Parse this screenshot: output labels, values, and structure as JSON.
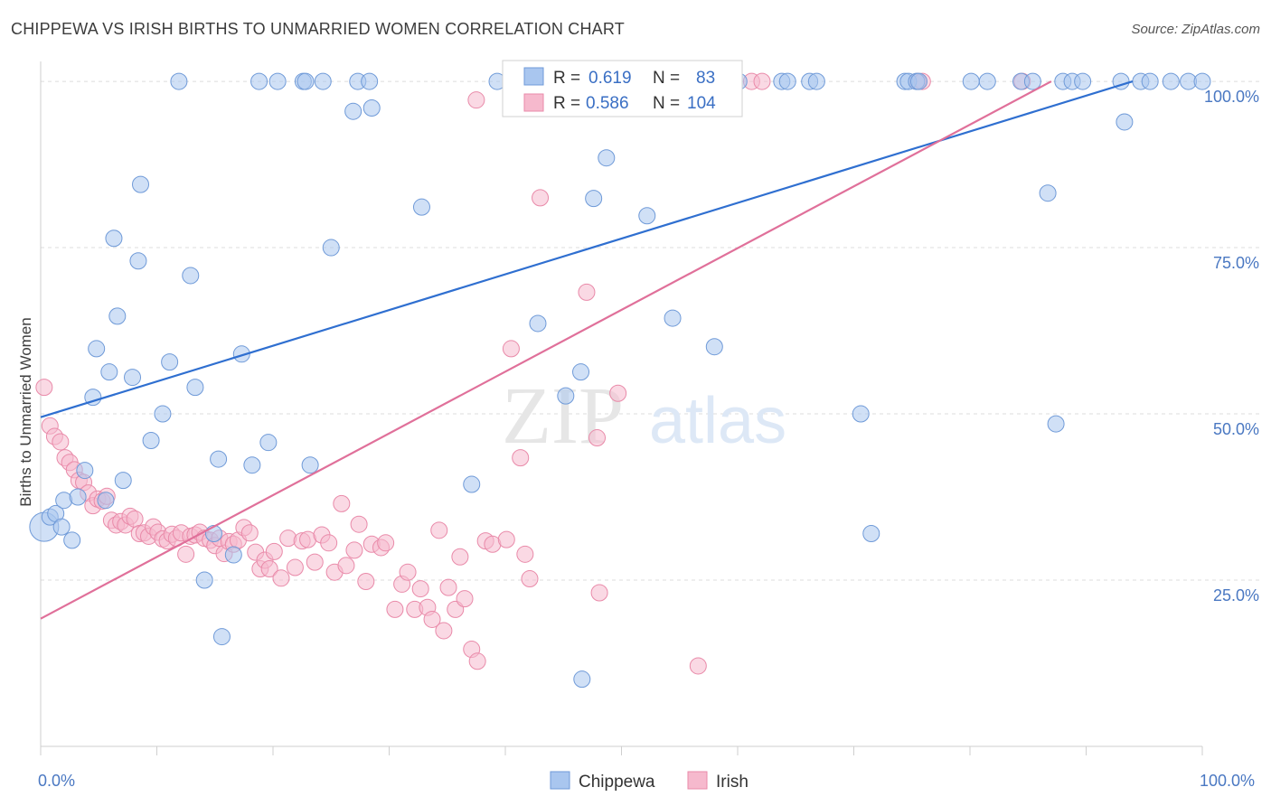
{
  "title": "CHIPPEWA VS IRISH BIRTHS TO UNMARRIED WOMEN CORRELATION CHART",
  "source": "Source: ZipAtlas.com",
  "watermark": {
    "zip": "ZIP",
    "atlas": "atlas"
  },
  "colors": {
    "chippewa_fill": "#a9c6ef",
    "chippewa_stroke": "#6f9ad8",
    "chippewa_line": "#2f6fd0",
    "irish_fill": "#f6b9cd",
    "irish_stroke": "#e98aa9",
    "irish_line": "#e0709a",
    "grid": "#dcdcdc",
    "tick_text": "#4a78c2"
  },
  "legend": {
    "r_label": "R =",
    "n_label": "N =",
    "rows": [
      {
        "series": "Chippewa",
        "r": "0.619",
        "n": "83"
      },
      {
        "series": "Irish",
        "r": "0.586",
        "n": "104"
      }
    ],
    "placement": "top-center"
  },
  "chart_data": {
    "type": "scatter",
    "title": "CHIPPEWA VS IRISH BIRTHS TO UNMARRIED WOMEN CORRELATION CHART",
    "xlabel": "",
    "ylabel": "Births to Unmarried Women",
    "xlim": [
      0,
      100
    ],
    "ylim": [
      0,
      103
    ],
    "x_tick_labels": [
      "0.0%",
      "100.0%"
    ],
    "y_ticks": [
      {
        "value": 25,
        "label": "25.0%"
      },
      {
        "value": 50,
        "label": "50.0%"
      },
      {
        "value": 75,
        "label": "75.0%"
      },
      {
        "value": 100,
        "label": "100.0%"
      }
    ],
    "grid": true,
    "series": [
      {
        "name": "Chippewa",
        "trend": {
          "x": [
            0,
            94
          ],
          "y": [
            49.5,
            100
          ]
        },
        "points": [
          [
            0.3,
            33
          ],
          [
            0.8,
            34.5
          ],
          [
            1.3,
            35
          ],
          [
            1.8,
            33
          ],
          [
            2,
            37
          ],
          [
            2.7,
            31
          ],
          [
            3.2,
            37.5
          ],
          [
            3.8,
            41.5
          ],
          [
            4.5,
            52.5
          ],
          [
            4.8,
            59.8
          ],
          [
            5.6,
            37
          ],
          [
            5.9,
            56.3
          ],
          [
            6.3,
            76.4
          ],
          [
            6.6,
            64.7
          ],
          [
            7.1,
            40
          ],
          [
            7.9,
            55.5
          ],
          [
            8.4,
            73
          ],
          [
            8.6,
            84.5
          ],
          [
            9.5,
            46
          ],
          [
            10.5,
            50
          ],
          [
            11.1,
            57.8
          ],
          [
            11.9,
            100
          ],
          [
            12.9,
            70.8
          ],
          [
            13.3,
            54
          ],
          [
            14.1,
            25
          ],
          [
            14.9,
            32
          ],
          [
            15.3,
            43.2
          ],
          [
            15.6,
            16.5
          ],
          [
            16.6,
            28.8
          ],
          [
            17.3,
            59
          ],
          [
            18.2,
            42.3
          ],
          [
            18.8,
            100
          ],
          [
            19.6,
            45.7
          ],
          [
            20.4,
            100
          ],
          [
            22.6,
            100
          ],
          [
            22.8,
            100
          ],
          [
            23.2,
            42.3
          ],
          [
            24.3,
            100
          ],
          [
            25,
            75
          ],
          [
            26.9,
            95.5
          ],
          [
            27.3,
            100
          ],
          [
            28.3,
            100
          ],
          [
            28.5,
            96
          ],
          [
            32.8,
            81.1
          ],
          [
            37.1,
            39.4
          ],
          [
            39.3,
            100
          ],
          [
            42.8,
            63.6
          ],
          [
            45.2,
            52.7
          ],
          [
            46.5,
            56.3
          ],
          [
            46.6,
            10.1
          ],
          [
            47.6,
            82.4
          ],
          [
            48.7,
            88.5
          ],
          [
            52.2,
            79.8
          ],
          [
            54.4,
            64.4
          ],
          [
            56.4,
            100
          ],
          [
            58,
            60.1
          ],
          [
            60.1,
            100
          ],
          [
            63.8,
            100
          ],
          [
            64.3,
            100
          ],
          [
            66.2,
            100
          ],
          [
            66.8,
            100
          ],
          [
            70.6,
            50
          ],
          [
            74.4,
            100
          ],
          [
            74.7,
            100
          ],
          [
            75.4,
            100
          ],
          [
            75.6,
            100
          ],
          [
            71.5,
            32
          ],
          [
            80.1,
            100
          ],
          [
            81.5,
            100
          ],
          [
            84.4,
            100
          ],
          [
            85.4,
            100
          ],
          [
            86.7,
            83.2
          ],
          [
            87.4,
            48.5
          ],
          [
            88,
            100
          ],
          [
            88.8,
            100
          ],
          [
            89.7,
            100
          ],
          [
            93,
            100
          ],
          [
            93.3,
            93.9
          ],
          [
            94.7,
            100
          ],
          [
            95.5,
            100
          ],
          [
            97.3,
            100
          ],
          [
            98.8,
            100
          ],
          [
            100,
            100
          ]
        ]
      },
      {
        "name": "Irish",
        "trend": {
          "x": [
            0,
            87
          ],
          "y": [
            19.2,
            100
          ]
        },
        "points": [
          [
            0.3,
            54
          ],
          [
            0.8,
            48.2
          ],
          [
            1.2,
            46.6
          ],
          [
            1.7,
            45.8
          ],
          [
            2.1,
            43.4
          ],
          [
            2.5,
            42.7
          ],
          [
            2.9,
            41.6
          ],
          [
            3.3,
            40
          ],
          [
            3.7,
            39.7
          ],
          [
            4.1,
            38.1
          ],
          [
            4.5,
            36.2
          ],
          [
            4.9,
            37.2
          ],
          [
            5.3,
            36.9
          ],
          [
            5.7,
            37.6
          ],
          [
            6.1,
            34
          ],
          [
            6.5,
            33.3
          ],
          [
            6.9,
            33.8
          ],
          [
            7.3,
            33.3
          ],
          [
            7.7,
            34.6
          ],
          [
            8.1,
            34.2
          ],
          [
            8.5,
            32
          ],
          [
            8.9,
            32.1
          ],
          [
            9.3,
            31.6
          ],
          [
            9.7,
            33
          ],
          [
            10.1,
            32.2
          ],
          [
            10.5,
            31.2
          ],
          [
            10.9,
            30.9
          ],
          [
            11.3,
            31.9
          ],
          [
            11.7,
            31.3
          ],
          [
            12.1,
            32.1
          ],
          [
            12.5,
            28.9
          ],
          [
            12.9,
            31.6
          ],
          [
            13.3,
            31.8
          ],
          [
            13.7,
            32.2
          ],
          [
            14.1,
            31.3
          ],
          [
            14.6,
            31
          ],
          [
            15,
            30.2
          ],
          [
            15.4,
            31.3
          ],
          [
            15.8,
            29
          ],
          [
            16.2,
            30.8
          ],
          [
            16.6,
            30.4
          ],
          [
            17,
            31
          ],
          [
            17.5,
            32.9
          ],
          [
            18,
            32.1
          ],
          [
            18.5,
            29.2
          ],
          [
            18.9,
            26.7
          ],
          [
            19.3,
            28
          ],
          [
            19.7,
            26.7
          ],
          [
            20.1,
            29.3
          ],
          [
            20.7,
            25.3
          ],
          [
            21.3,
            31.3
          ],
          [
            21.9,
            26.9
          ],
          [
            22.5,
            30.9
          ],
          [
            23,
            31.1
          ],
          [
            23.6,
            27.7
          ],
          [
            24.2,
            31.8
          ],
          [
            24.8,
            30.6
          ],
          [
            25.3,
            26.2
          ],
          [
            25.9,
            36.5
          ],
          [
            26.3,
            27.2
          ],
          [
            27,
            29.5
          ],
          [
            27.4,
            33.4
          ],
          [
            28,
            24.8
          ],
          [
            28.5,
            30.4
          ],
          [
            29.3,
            29.9
          ],
          [
            29.7,
            30.6
          ],
          [
            30.5,
            20.6
          ],
          [
            31.1,
            24.4
          ],
          [
            31.6,
            26.2
          ],
          [
            32.2,
            20.6
          ],
          [
            32.7,
            23.7
          ],
          [
            33.3,
            20.9
          ],
          [
            33.7,
            19.1
          ],
          [
            34.3,
            32.5
          ],
          [
            34.7,
            17.4
          ],
          [
            35.1,
            23.9
          ],
          [
            35.7,
            20.6
          ],
          [
            36.1,
            28.5
          ],
          [
            36.5,
            22.2
          ],
          [
            37.1,
            14.6
          ],
          [
            37.6,
            12.8
          ],
          [
            38.3,
            30.9
          ],
          [
            38.9,
            30.4
          ],
          [
            40.1,
            31.1
          ],
          [
            41.3,
            43.4
          ],
          [
            41.7,
            28.9
          ],
          [
            42.1,
            25.2
          ],
          [
            37.5,
            97.2
          ],
          [
            40.5,
            59.8
          ],
          [
            43,
            82.5
          ],
          [
            43.7,
            100
          ],
          [
            45.1,
            100
          ],
          [
            47,
            68.3
          ],
          [
            47.9,
            46.4
          ],
          [
            48.1,
            23.1
          ],
          [
            49.7,
            53.1
          ],
          [
            52.3,
            100
          ],
          [
            56.6,
            12.1
          ],
          [
            58.6,
            100
          ],
          [
            61.2,
            100
          ],
          [
            62.1,
            100
          ],
          [
            75.5,
            100
          ],
          [
            75.9,
            100
          ],
          [
            84.5,
            100
          ]
        ]
      }
    ]
  },
  "bottom_legend": [
    {
      "label": "Chippewa"
    },
    {
      "label": "Irish"
    }
  ]
}
